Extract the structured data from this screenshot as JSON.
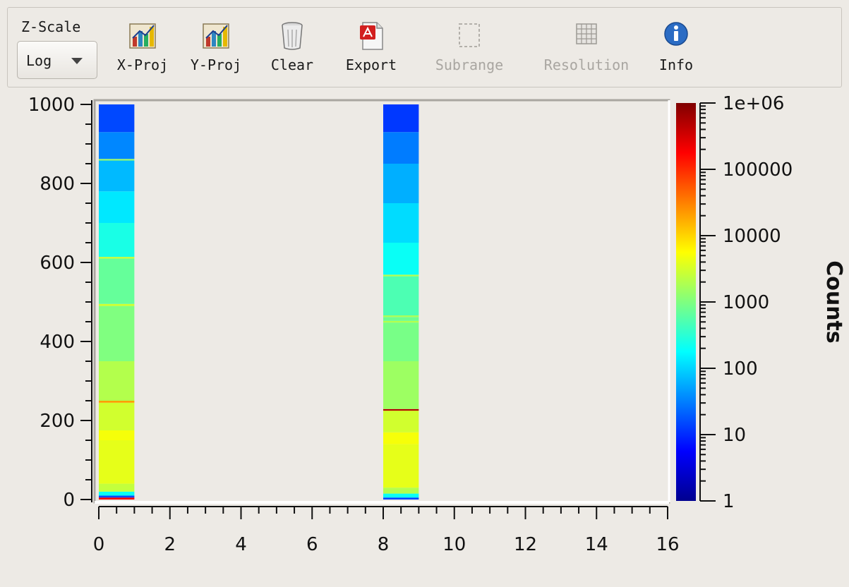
{
  "toolbar": {
    "zscale_label": "Z-Scale",
    "zscale_value": "Log",
    "buttons": [
      {
        "label": "X-Proj",
        "icon": "bar-chart-icon",
        "enabled": true
      },
      {
        "label": "Y-Proj",
        "icon": "bar-chart-icon",
        "enabled": true
      },
      {
        "label": "Clear",
        "icon": "trash-icon",
        "enabled": true
      },
      {
        "label": "Export",
        "icon": "pdf-export-icon",
        "enabled": true
      },
      {
        "label": "Subrange",
        "icon": "selection-icon",
        "enabled": false
      },
      {
        "label": "Resolution",
        "icon": "grid-icon",
        "enabled": false
      },
      {
        "label": "Info",
        "icon": "info-icon",
        "enabled": true
      }
    ]
  },
  "chart_data": {
    "type": "heatmap",
    "title": "",
    "xlabel": "",
    "ylabel": "",
    "xlim": [
      0,
      16
    ],
    "ylim": [
      0,
      1000
    ],
    "x_ticks": [
      "0",
      "2",
      "4",
      "6",
      "8",
      "10",
      "12",
      "14",
      "16"
    ],
    "y_ticks": [
      "0",
      "200",
      "400",
      "600",
      "800",
      "1000"
    ],
    "colorbar": {
      "label": "Counts",
      "scale": "log",
      "range": [
        1,
        1000000
      ],
      "ticks": [
        "1",
        "10",
        "100",
        "1000",
        "10000",
        "100000",
        "1e+06"
      ]
    },
    "columns": [
      {
        "x_range": [
          0,
          1
        ],
        "segments": [
          {
            "y": [
              0,
              5
            ],
            "counts": 200000
          },
          {
            "y": [
              5,
              10
            ],
            "counts": 15
          },
          {
            "y": [
              10,
              20
            ],
            "counts": 200
          },
          {
            "y": [
              20,
              40
            ],
            "counts": 2500
          },
          {
            "y": [
              40,
              150
            ],
            "counts": 4000
          },
          {
            "y": [
              150,
              175
            ],
            "counts": 5000
          },
          {
            "y": [
              175,
              245
            ],
            "counts": 3000
          },
          {
            "y": [
              245,
              250
            ],
            "counts": 20000
          },
          {
            "y": [
              250,
              350
            ],
            "counts": 2000
          },
          {
            "y": [
              350,
              490
            ],
            "counts": 1000
          },
          {
            "y": [
              490,
              495
            ],
            "counts": 3000
          },
          {
            "y": [
              495,
              610
            ],
            "counts": 700
          },
          {
            "y": [
              610,
              614
            ],
            "counts": 3000
          },
          {
            "y": [
              614,
              700
            ],
            "counts": 250
          },
          {
            "y": [
              700,
              780
            ],
            "counts": 130
          },
          {
            "y": [
              780,
              858
            ],
            "counts": 70
          },
          {
            "y": [
              858,
              862
            ],
            "counts": 1500
          },
          {
            "y": [
              862,
              930
            ],
            "counts": 35
          },
          {
            "y": [
              930,
              1000
            ],
            "counts": 15
          }
        ]
      },
      {
        "x_range": [
          8,
          9
        ],
        "segments": [
          {
            "y": [
              0,
              5
            ],
            "counts": 15
          },
          {
            "y": [
              5,
              15
            ],
            "counts": 200
          },
          {
            "y": [
              15,
              30
            ],
            "counts": 2000
          },
          {
            "y": [
              30,
              140
            ],
            "counts": 4000
          },
          {
            "y": [
              140,
              170
            ],
            "counts": 5000
          },
          {
            "y": [
              170,
              225
            ],
            "counts": 3000
          },
          {
            "y": [
              225,
              229
            ],
            "counts": 500000
          },
          {
            "y": [
              229,
              350
            ],
            "counts": 1500
          },
          {
            "y": [
              350,
              448
            ],
            "counts": 900
          },
          {
            "y": [
              448,
              452
            ],
            "counts": 2000
          },
          {
            "y": [
              452,
              462
            ],
            "counts": 800
          },
          {
            "y": [
              462,
              466
            ],
            "counts": 1800
          },
          {
            "y": [
              466,
              565
            ],
            "counts": 500
          },
          {
            "y": [
              565,
              569
            ],
            "counts": 2000
          },
          {
            "y": [
              569,
              650
            ],
            "counts": 200
          },
          {
            "y": [
              650,
              750
            ],
            "counts": 110
          },
          {
            "y": [
              750,
              850
            ],
            "counts": 60
          },
          {
            "y": [
              850,
              930
            ],
            "counts": 30
          },
          {
            "y": [
              930,
              1000
            ],
            "counts": 12
          }
        ]
      }
    ]
  }
}
